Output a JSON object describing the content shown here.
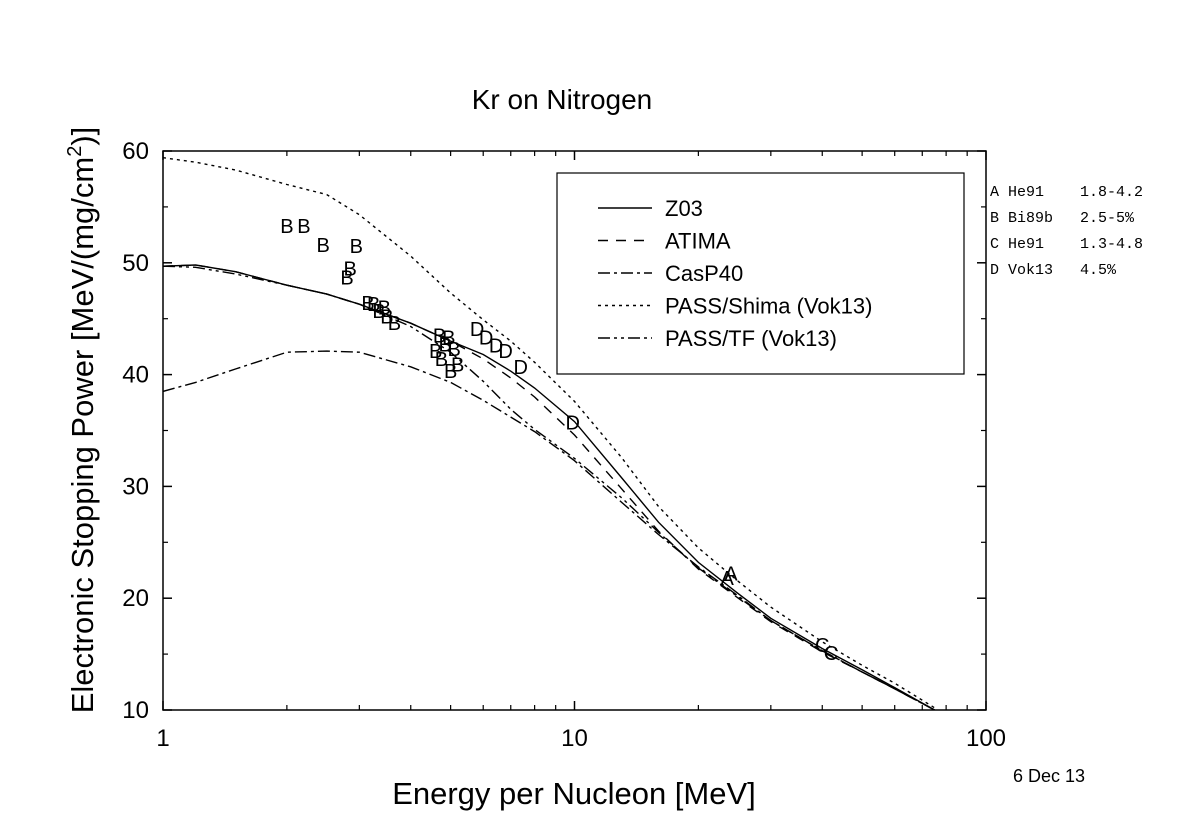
{
  "chart_data": {
    "type": "line",
    "title": "Kr on Nitrogen",
    "xlabel": "Energy per Nucleon [MeV]",
    "ylabel": "Electronic Stopping Power [MeV/(mg/cm",
    "ylabel_sup": "2",
    "ylabel_end": ")]",
    "xscale": "log",
    "xlim": [
      1,
      100
    ],
    "ylim": [
      10,
      60
    ],
    "x_ticks": [
      1,
      10,
      100
    ],
    "x_tick_labels": [
      "1",
      "10",
      "100"
    ],
    "y_ticks": [
      10,
      20,
      30,
      40,
      50,
      60
    ],
    "y_tick_labels": [
      "10",
      "20",
      "30",
      "40",
      "50",
      "60"
    ],
    "grid": false,
    "legend_position": "top-right",
    "series": [
      {
        "name": "Z03",
        "dash": "",
        "x": [
          1,
          1.2,
          1.5,
          2,
          2.5,
          3,
          4,
          5,
          6,
          7,
          8,
          10,
          13,
          16,
          20,
          25,
          30,
          40,
          50,
          60,
          75
        ],
        "y": [
          49.7,
          49.8,
          49.2,
          48.0,
          47.2,
          46.3,
          44.6,
          43.0,
          41.8,
          40.3,
          38.8,
          35.8,
          30.8,
          26.8,
          23.2,
          20.4,
          18.2,
          15.5,
          13.6,
          12.0,
          10.0
        ]
      },
      {
        "name": "ATIMA",
        "dash": "10,8",
        "x": [
          1,
          1.2,
          1.5,
          2,
          2.5,
          3,
          4,
          5,
          6,
          7,
          8,
          10,
          13,
          16,
          20,
          25,
          30,
          40,
          50,
          60,
          75
        ],
        "y": [
          49.7,
          49.8,
          49.2,
          48.0,
          47.2,
          46.3,
          44.6,
          43.0,
          41.4,
          39.7,
          38.0,
          34.6,
          29.8,
          26.0,
          22.6,
          20.0,
          17.9,
          15.2,
          13.4,
          11.9,
          10.0
        ]
      },
      {
        "name": "CasP40",
        "dash": "12,4,3,4",
        "x": [
          1,
          1.2,
          1.5,
          2,
          2.5,
          3,
          4,
          5,
          6,
          7,
          8,
          10,
          13,
          16,
          20,
          25,
          30,
          40,
          50,
          60,
          75
        ],
        "y": [
          38.5,
          39.3,
          40.5,
          42.0,
          42.1,
          42.0,
          40.7,
          39.3,
          37.7,
          36.2,
          34.9,
          32.3,
          28.6,
          25.7,
          22.8,
          20.2,
          18.0,
          15.3,
          13.4,
          11.9,
          10.0
        ]
      },
      {
        "name": "PASS/Shima (Vok13)",
        "dash": "3,4",
        "x": [
          1,
          1.2,
          1.5,
          2,
          2.5,
          3,
          4,
          5,
          6,
          7,
          8,
          10,
          13,
          16,
          20,
          25,
          30,
          40,
          50,
          60,
          75
        ],
        "y": [
          59.4,
          59.0,
          58.3,
          57.0,
          56.1,
          54.3,
          50.6,
          47.3,
          44.9,
          43.0,
          41.1,
          37.6,
          32.6,
          28.2,
          24.5,
          21.5,
          19.2,
          16.1,
          14.0,
          12.4,
          10.2
        ]
      },
      {
        "name": "PASS/TF (Vok13)",
        "dash": "12,4,3,4,3,4",
        "x": [
          1,
          1.2,
          1.5,
          2,
          2.5,
          3,
          4,
          5,
          6,
          7,
          8,
          10,
          13,
          16,
          20,
          25,
          30,
          40,
          50,
          60,
          75
        ],
        "y": [
          49.7,
          49.6,
          49.0,
          48.0,
          47.2,
          46.3,
          44.3,
          42.0,
          39.4,
          36.9,
          35.1,
          32.5,
          29.0,
          25.9,
          22.7,
          20.1,
          18.0,
          15.3,
          13.4,
          11.9,
          10.0
        ]
      }
    ],
    "points": [
      {
        "label": "A",
        "x": 23.5,
        "y": 21.8
      },
      {
        "label": "A",
        "x": 24.0,
        "y": 22.2
      },
      {
        "label": "B",
        "x": 2.0,
        "y": 53.3
      },
      {
        "label": "B",
        "x": 2.2,
        "y": 53.3
      },
      {
        "label": "B",
        "x": 2.45,
        "y": 51.6
      },
      {
        "label": "B",
        "x": 2.95,
        "y": 51.5
      },
      {
        "label": "B",
        "x": 2.85,
        "y": 49.5
      },
      {
        "label": "B",
        "x": 2.8,
        "y": 48.7
      },
      {
        "label": "B",
        "x": 3.15,
        "y": 46.4
      },
      {
        "label": "B",
        "x": 3.25,
        "y": 46.3
      },
      {
        "label": "B",
        "x": 3.35,
        "y": 45.7
      },
      {
        "label": "B",
        "x": 3.45,
        "y": 46.0
      },
      {
        "label": "B",
        "x": 3.5,
        "y": 45.2
      },
      {
        "label": "B",
        "x": 3.65,
        "y": 44.6
      },
      {
        "label": "B",
        "x": 4.6,
        "y": 42.1
      },
      {
        "label": "B",
        "x": 4.7,
        "y": 43.5
      },
      {
        "label": "B",
        "x": 4.75,
        "y": 41.4
      },
      {
        "label": "B",
        "x": 4.85,
        "y": 42.7
      },
      {
        "label": "B",
        "x": 4.95,
        "y": 43.3
      },
      {
        "label": "B",
        "x": 5.0,
        "y": 40.3
      },
      {
        "label": "B",
        "x": 5.1,
        "y": 42.3
      },
      {
        "label": "B",
        "x": 5.2,
        "y": 40.9
      },
      {
        "label": "C",
        "x": 40.0,
        "y": 15.8
      },
      {
        "label": "C",
        "x": 42.0,
        "y": 15.1
      },
      {
        "label": "D",
        "x": 5.8,
        "y": 44.1
      },
      {
        "label": "D",
        "x": 6.1,
        "y": 43.3
      },
      {
        "label": "D",
        "x": 6.45,
        "y": 42.6
      },
      {
        "label": "D",
        "x": 6.8,
        "y": 42.1
      },
      {
        "label": "D",
        "x": 7.4,
        "y": 40.7
      },
      {
        "label": "D",
        "x": 9.9,
        "y": 35.7
      }
    ]
  },
  "references": [
    "A He91    1.8-4.2",
    "B Bi89b   2.5-5%",
    "C He91    1.3-4.8",
    "D Vok13   4.5%"
  ],
  "date": "6 Dec 13"
}
